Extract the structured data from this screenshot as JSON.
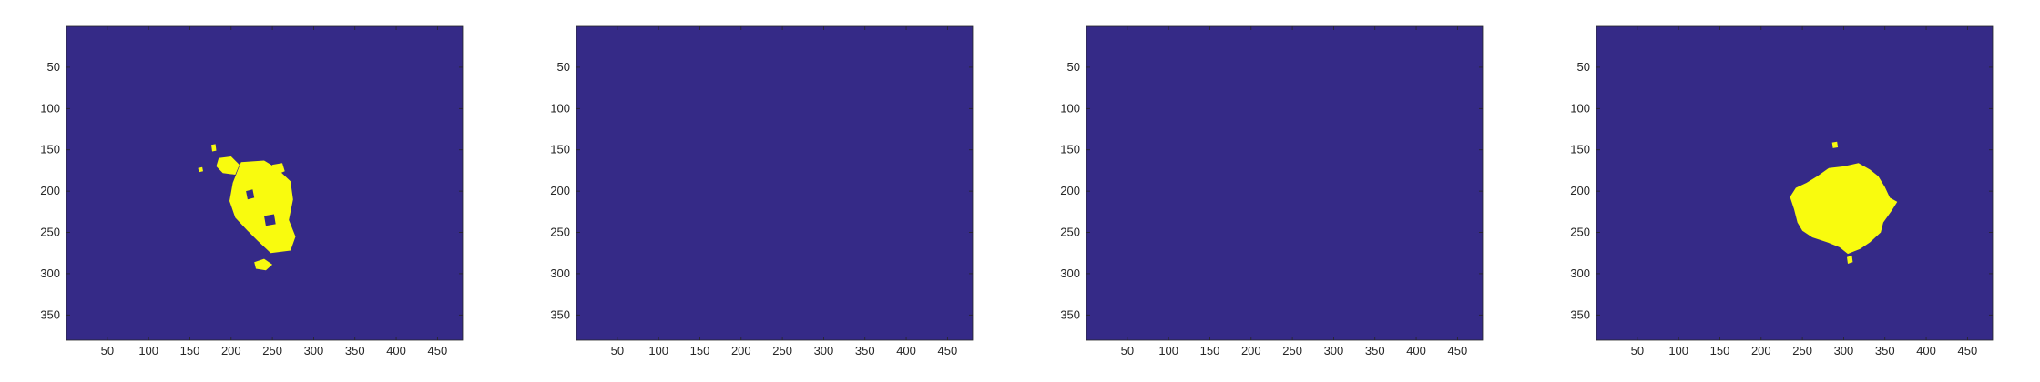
{
  "colors": {
    "background": "#352a87",
    "foreground": "#f9fb0e",
    "axis": "#262626"
  },
  "chart_data": [
    {
      "type": "heatmap",
      "title": "",
      "xlabel": "",
      "ylabel": "",
      "xlim": [
        0.5,
        480.5
      ],
      "ylim": [
        0.5,
        380.5
      ],
      "y_reversed": true,
      "grid": false,
      "xticks": [
        50,
        100,
        150,
        200,
        250,
        300,
        350,
        400,
        450
      ],
      "yticks": [
        50,
        100,
        150,
        200,
        250,
        300,
        350
      ],
      "regions": [
        {
          "fill": "foreground",
          "polygon": [
            [
              212,
              165
            ],
            [
              240,
              163
            ],
            [
              255,
              172
            ],
            [
              272,
              188
            ],
            [
              275,
              210
            ],
            [
              270,
              235
            ],
            [
              278,
              255
            ],
            [
              272,
              272
            ],
            [
              248,
              275
            ],
            [
              232,
              260
            ],
            [
              220,
              248
            ],
            [
              205,
              232
            ],
            [
              198,
              212
            ],
            [
              202,
              190
            ],
            [
              208,
              175
            ]
          ]
        },
        {
          "fill": "foreground",
          "polygon": [
            [
              185,
              160
            ],
            [
              200,
              158
            ],
            [
              210,
              168
            ],
            [
              205,
              180
            ],
            [
              190,
              178
            ],
            [
              182,
              170
            ]
          ]
        },
        {
          "fill": "foreground",
          "polygon": [
            [
              250,
              168
            ],
            [
              262,
              166
            ],
            [
              265,
              176
            ],
            [
              255,
              180
            ],
            [
              249,
              175
            ]
          ]
        },
        {
          "fill": "foreground",
          "polygon": [
            [
              228,
              286
            ],
            [
              240,
              282
            ],
            [
              250,
              289
            ],
            [
              242,
              296
            ],
            [
              230,
              294
            ]
          ]
        },
        {
          "fill": "foreground",
          "polygon": [
            [
              176,
              144
            ],
            [
              181,
              143
            ],
            [
              182,
              151
            ],
            [
              177,
              152
            ]
          ]
        },
        {
          "fill": "foreground",
          "polygon": [
            [
              160,
              172
            ],
            [
              165,
              171
            ],
            [
              166,
              176
            ],
            [
              161,
              177
            ]
          ]
        },
        {
          "fill": "foreground",
          "polygon": [
            [
              218,
              200
            ],
            [
              226,
              198
            ],
            [
              228,
              208
            ],
            [
              220,
              210
            ]
          ],
          "hole": true
        },
        {
          "fill": "foreground",
          "polygon": [
            [
              240,
              230
            ],
            [
              252,
              228
            ],
            [
              254,
              240
            ],
            [
              242,
              242
            ]
          ],
          "hole": true
        }
      ]
    },
    {
      "type": "heatmap",
      "title": "",
      "xlabel": "",
      "ylabel": "",
      "xlim": [
        0.5,
        480.5
      ],
      "ylim": [
        0.5,
        380.5
      ],
      "y_reversed": true,
      "grid": false,
      "xticks": [
        50,
        100,
        150,
        200,
        250,
        300,
        350,
        400,
        450
      ],
      "yticks": [
        50,
        100,
        150,
        200,
        250,
        300,
        350
      ],
      "regions": []
    },
    {
      "type": "heatmap",
      "title": "",
      "xlabel": "",
      "ylabel": "",
      "xlim": [
        0.5,
        480.5
      ],
      "ylim": [
        0.5,
        380.5
      ],
      "y_reversed": true,
      "grid": false,
      "xticks": [
        50,
        100,
        150,
        200,
        250,
        300,
        350,
        400,
        450
      ],
      "yticks": [
        50,
        100,
        150,
        200,
        250,
        300,
        350
      ],
      "regions": []
    },
    {
      "type": "heatmap",
      "title": "",
      "xlabel": "",
      "ylabel": "",
      "xlim": [
        0.5,
        480.5
      ],
      "ylim": [
        0.5,
        380.5
      ],
      "y_reversed": true,
      "grid": false,
      "xticks": [
        50,
        100,
        150,
        200,
        250,
        300,
        350,
        400,
        450
      ],
      "yticks": [
        50,
        100,
        150,
        200,
        250,
        300,
        350
      ],
      "regions": [
        {
          "fill": "foreground",
          "polygon": [
            [
              268,
              182
            ],
            [
              282,
              172
            ],
            [
              300,
              170
            ],
            [
              318,
              166
            ],
            [
              332,
              174
            ],
            [
              342,
              182
            ],
            [
              350,
              195
            ],
            [
              356,
              208
            ],
            [
              365,
              213
            ],
            [
              358,
              224
            ],
            [
              348,
              238
            ],
            [
              345,
              250
            ],
            [
              332,
              262
            ],
            [
              320,
              270
            ],
            [
              305,
              276
            ],
            [
              295,
              268
            ],
            [
              280,
              262
            ],
            [
              262,
              256
            ],
            [
              250,
              248
            ],
            [
              244,
              238
            ],
            [
              240,
              222
            ],
            [
              235,
              207
            ],
            [
              242,
              196
            ],
            [
              255,
              190
            ]
          ]
        },
        {
          "fill": "foreground",
          "polygon": [
            [
              286,
              141
            ],
            [
              292,
              140
            ],
            [
              293,
              147
            ],
            [
              287,
              148
            ]
          ]
        },
        {
          "fill": "foreground",
          "polygon": [
            [
              304,
              280
            ],
            [
              310,
              278
            ],
            [
              311,
              286
            ],
            [
              305,
              288
            ]
          ]
        }
      ]
    }
  ]
}
